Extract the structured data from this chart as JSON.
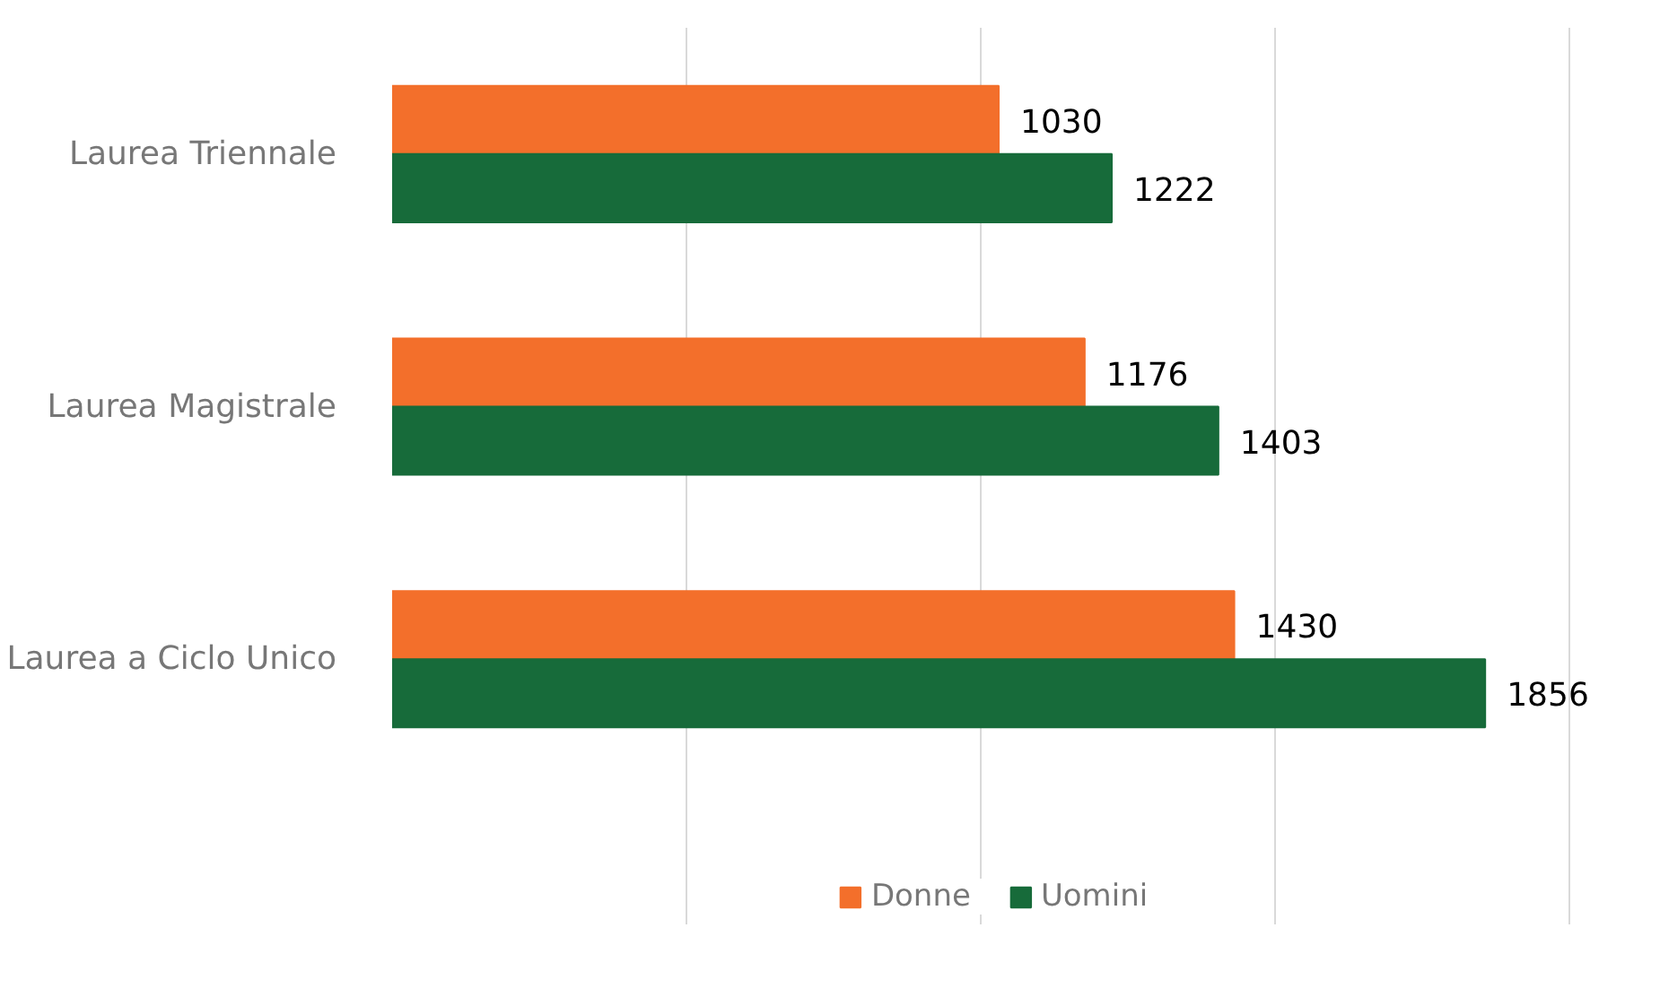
{
  "chart_data": {
    "type": "bar",
    "orientation": "horizontal",
    "categories": [
      "Laurea Triennale",
      "Laurea Magistrale",
      "Laurea a Ciclo Unico"
    ],
    "series": [
      {
        "name": "Donne",
        "color": "#f36f2b",
        "values": [
          1030,
          1176,
          1430
        ]
      },
      {
        "name": "Uomini",
        "color": "#176b3a",
        "values": [
          1222,
          1403,
          1856
        ]
      }
    ],
    "tick_labels": "y",
    "grid": "x",
    "legend": "bottom",
    "data_labels": true
  }
}
